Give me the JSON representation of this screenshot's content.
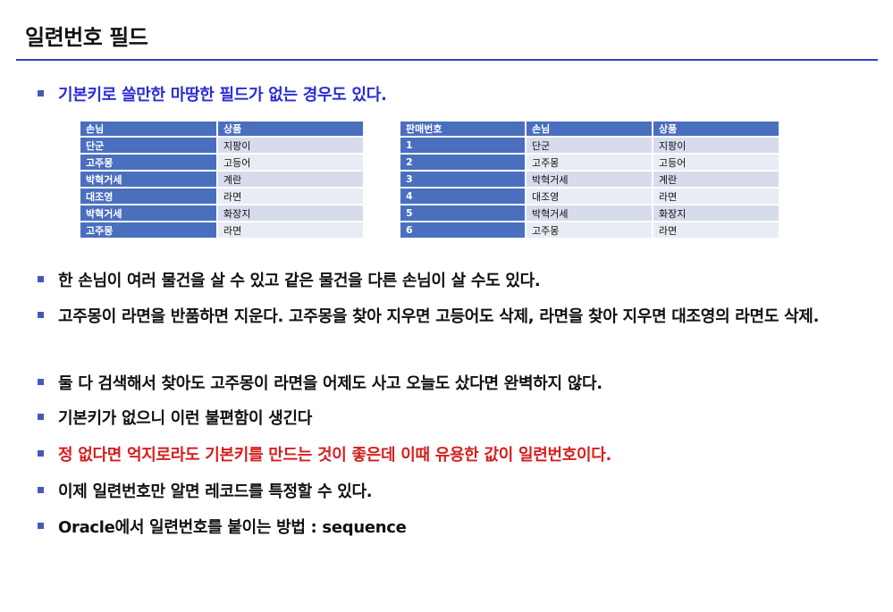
{
  "slide": {
    "title": "일련번호 필드"
  },
  "intro_bullet": "기본키로 쓸만한 마땅한 필드가 없는 경우도 있다.",
  "table_left": {
    "headers": [
      "손님",
      "상품"
    ],
    "rows": [
      [
        "단군",
        "지팡이"
      ],
      [
        "고주몽",
        "고등어"
      ],
      [
        "박혁거세",
        "계란"
      ],
      [
        "대조영",
        "라면"
      ],
      [
        "박혁거세",
        "화장지"
      ],
      [
        "고주몽",
        "라면"
      ]
    ]
  },
  "table_right": {
    "headers": [
      "판매번호",
      "손님",
      "상품"
    ],
    "rows": [
      [
        "1",
        "단군",
        "지팡이"
      ],
      [
        "2",
        "고주몽",
        "고등어"
      ],
      [
        "3",
        "박혁거세",
        "계란"
      ],
      [
        "4",
        "대조영",
        "라면"
      ],
      [
        "5",
        "박혁거세",
        "화장지"
      ],
      [
        "6",
        "고주몽",
        "라면"
      ]
    ]
  },
  "bullets": [
    {
      "text": "한 손님이 여러 물건을 살 수 있고 같은 물건을 다른 손님이 살 수도 있다.",
      "style": "normal"
    },
    {
      "text": "고주몽이 라면을 반품하면 지운다. 고주몽을 찾아 지우면 고등어도 삭제, 라면을 찾아 지우면 대조영의 라면도 삭제.",
      "style": "normal"
    },
    {
      "text": "둘 다 검색해서 찾아도 고주몽이 라면을 어제도 사고 오늘도 샀다면 완벽하지 않다.",
      "style": "normal"
    },
    {
      "text": "기본키가 없으니 이런 불편함이 생긴다",
      "style": "normal"
    },
    {
      "text": "정 없다면 억지로라도 기본키를 만드는 것이 좋은데 이때 유용한 값이 일련번호이다.",
      "style": "red"
    },
    {
      "text": "이제 일련번호만 알면 레코드를 특정할 수 있다.",
      "style": "normal"
    },
    {
      "text": "Oracle에서 일련번호를 붙이는 방법 : sequence",
      "style": "normal"
    }
  ],
  "colors": {
    "accent_blue": "#2b2cd6",
    "emphasis_red": "#d61e1e",
    "table_header": "#4a6fbf",
    "rule": "#3b3fc4"
  }
}
